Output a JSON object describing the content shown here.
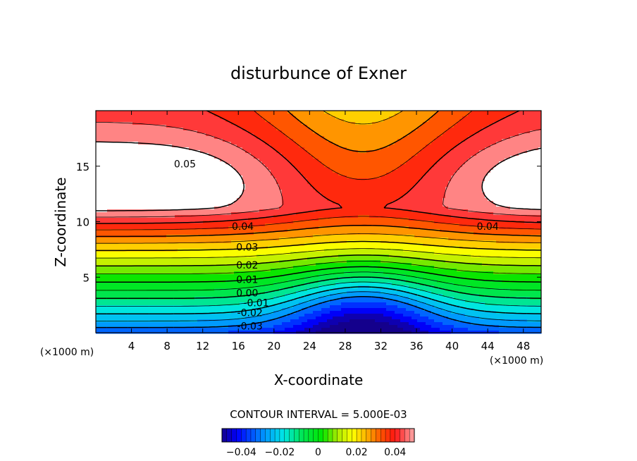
{
  "chart_data": {
    "type": "contour",
    "title": "disturbunce of Exner",
    "xlabel": "X-coordinate",
    "ylabel": "Z-coordinate",
    "x_unit": "(×1000 m)",
    "y_unit": "(×1000 m)",
    "xlim": [
      0,
      50
    ],
    "ylim": [
      0,
      20
    ],
    "x_ticks": [
      4,
      8,
      12,
      16,
      20,
      24,
      28,
      32,
      36,
      40,
      44,
      48
    ],
    "y_ticks": [
      5,
      10,
      15
    ],
    "contour_interval_text": "CONTOUR INTERVAL = 5.000E-03",
    "contour_interval": 0.005,
    "levels": [
      -0.03,
      -0.025,
      -0.02,
      -0.015,
      -0.01,
      -0.005,
      0.0,
      0.005,
      0.01,
      0.015,
      0.02,
      0.025,
      0.03,
      0.035,
      0.04,
      0.045,
      0.05
    ],
    "value_range": [
      -0.05,
      0.05
    ],
    "contour_labels": [
      {
        "text": "0.05",
        "x": 10,
        "z": 15.2
      },
      {
        "text": "0.04",
        "x": 16.5,
        "z": 9.6
      },
      {
        "text": "0.04",
        "x": 44,
        "z": 9.6
      },
      {
        "text": "0.03",
        "x": 17,
        "z": 7.7
      },
      {
        "text": "0.02",
        "x": 17,
        "z": 6.1
      },
      {
        "text": "0.01",
        "x": 17,
        "z": 4.8
      },
      {
        "text": "0.00",
        "x": 17,
        "z": 3.6
      },
      {
        "text": "-0.01",
        "x": 18,
        "z": 2.7
      },
      {
        "text": "-0.02",
        "x": 17.3,
        "z": 1.8
      },
      {
        "text": "-0.03",
        "x": 17.3,
        "z": 0.6
      }
    ],
    "colorbar": {
      "ticks": [
        {
          "value": -0.04,
          "label": "−0.04"
        },
        {
          "value": -0.02,
          "label": "−0.02"
        },
        {
          "value": 0,
          "label": "0"
        },
        {
          "value": 0.02,
          "label": "0.02"
        },
        {
          "value": 0.04,
          "label": "0.04"
        }
      ]
    }
  }
}
